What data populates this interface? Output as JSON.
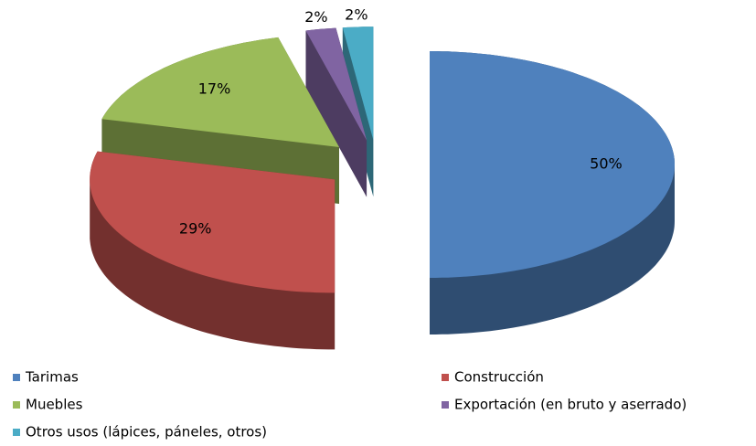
{
  "chart_data": {
    "type": "pie",
    "categories": [
      "Tarimas",
      "Construcción",
      "Muebles",
      "Exportación (en bruto y aserrado)",
      "Otros usos (lápices, páneles, otros)"
    ],
    "values": [
      50,
      29,
      17,
      2,
      2
    ],
    "value_labels": [
      "50%",
      "29%",
      "17%",
      "2%",
      "2%"
    ],
    "colors": [
      "#4f81bd",
      "#c0504d",
      "#9bbb59",
      "#8064a2",
      "#4bacc6"
    ],
    "legend": "bottom"
  }
}
